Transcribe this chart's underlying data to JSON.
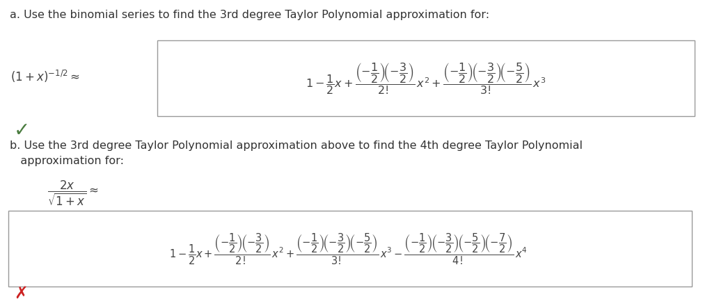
{
  "background_color": "#ffffff",
  "title_a": "a. Use the binomial series to find the 3rd degree Taylor Polynomial approximation for:",
  "title_b": "b. Use the 3rd degree Taylor Polynomial approximation above to find the 4th degree Taylor Polynomial\n   approximation for:",
  "text_color": "#333333",
  "math_color": "#444444",
  "check_color": "#4a7c3f",
  "cross_color": "#cc2222",
  "font_size_text": 11.5,
  "fig_width": 10.1,
  "fig_height": 4.4,
  "dpi": 100
}
